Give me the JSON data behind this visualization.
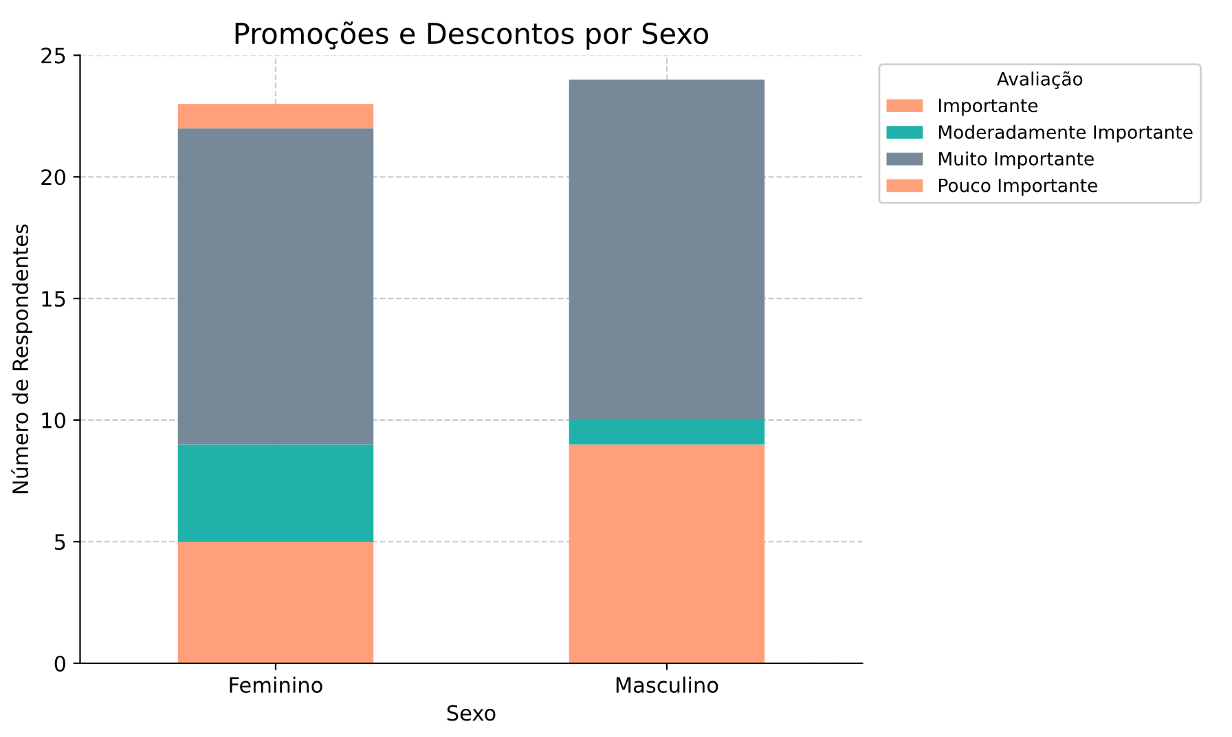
{
  "chart_data": {
    "type": "bar",
    "stacked": true,
    "title": "Promoções e Descontos por Sexo",
    "xlabel": "Sexo",
    "ylabel": "Número de Respondentes",
    "legend_title": "Avaliação",
    "categories": [
      "Feminino",
      "Masculino"
    ],
    "series": [
      {
        "name": "Importante",
        "color": "#ffa07a",
        "values": [
          5,
          9
        ]
      },
      {
        "name": "Moderadamente Importante",
        "color": "#20b2aa",
        "values": [
          4,
          1
        ]
      },
      {
        "name": "Muito Importante",
        "color": "#778899",
        "values": [
          13,
          14
        ]
      },
      {
        "name": "Pouco Importante",
        "color": "#ffa07a",
        "values": [
          1,
          0
        ]
      }
    ],
    "ylim": [
      0,
      25
    ],
    "yticks": [
      0,
      5,
      10,
      15,
      20,
      25
    ],
    "grid": true,
    "legend": "right"
  }
}
